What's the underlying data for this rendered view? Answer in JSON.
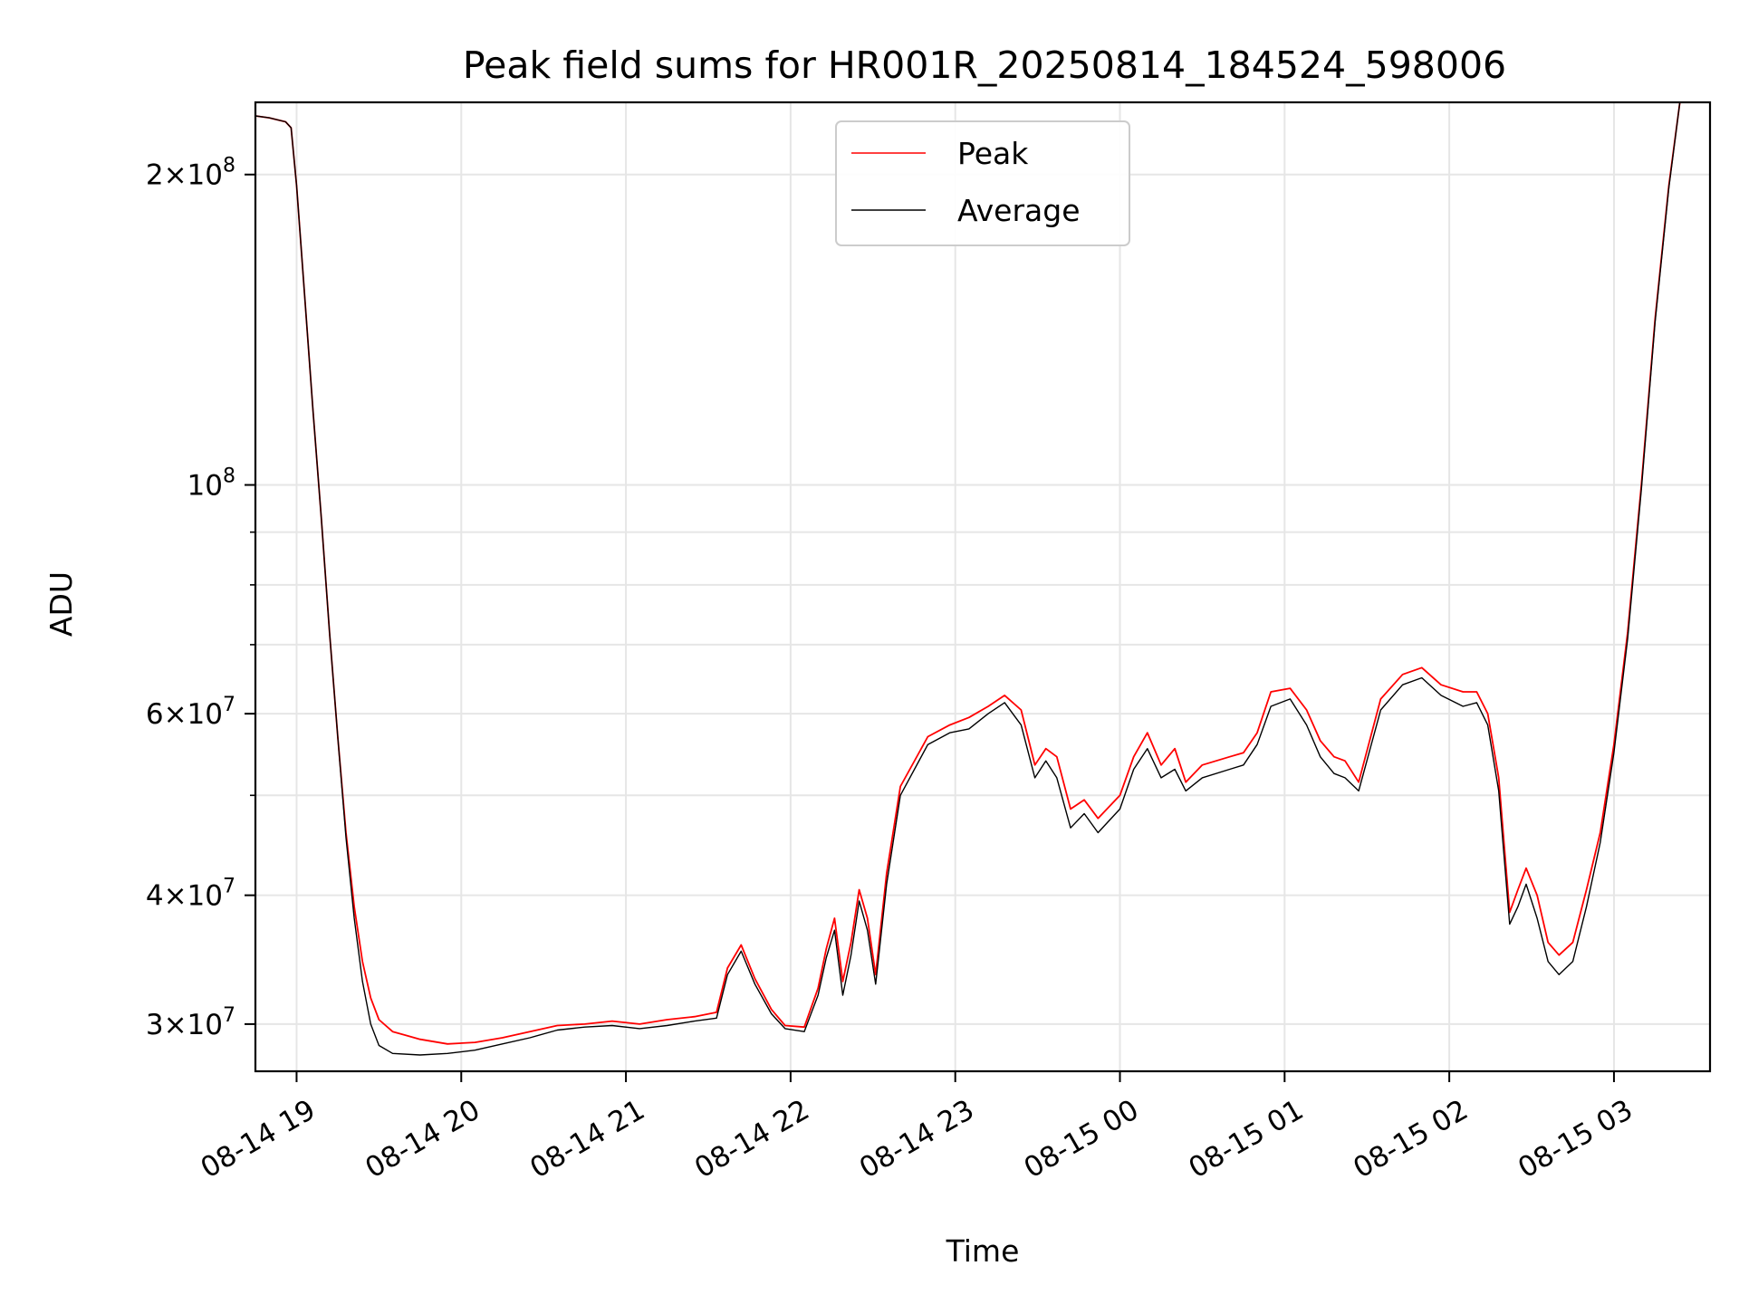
{
  "chart_data": {
    "type": "line",
    "title": "Peak field sums for HR001R_20250814_184524_598006",
    "xlabel": "Time",
    "ylabel": "ADU",
    "x_type": "time",
    "xlim": [
      "2025-08-14 18:45",
      "2025-08-15 03:35"
    ],
    "ylim": [
      27000000,
      235000000
    ],
    "yscale": "log",
    "grid": true,
    "legend_position": "top-center",
    "x_ticks": [
      "08-14 19",
      "08-14 20",
      "08-14 21",
      "08-14 22",
      "08-14 23",
      "08-15 00",
      "08-15 01",
      "08-15 02",
      "08-15 03"
    ],
    "x_tick_times": [
      "2025-08-14 19:00",
      "2025-08-14 20:00",
      "2025-08-14 21:00",
      "2025-08-14 22:00",
      "2025-08-14 23:00",
      "2025-08-15 00:00",
      "2025-08-15 01:00",
      "2025-08-15 02:00",
      "2025-08-15 03:00"
    ],
    "y_major_ticks": [
      {
        "value": 30000000,
        "mantissa": "3",
        "exp": "7"
      },
      {
        "value": 40000000,
        "mantissa": "4",
        "exp": "7"
      },
      {
        "value": 60000000,
        "mantissa": "6",
        "exp": "7"
      },
      {
        "value": 100000000,
        "mantissa": "",
        "exp": "8"
      },
      {
        "value": 200000000,
        "mantissa": "2",
        "exp": "8"
      }
    ],
    "y_minor_gridlines": [
      50000000,
      70000000,
      80000000,
      90000000
    ],
    "series": [
      {
        "name": "Peak",
        "color": "#ff0000",
        "x": [
          "2025-08-14 18:45",
          "2025-08-14 18:50",
          "2025-08-14 18:56",
          "2025-08-14 18:58",
          "2025-08-14 19:00",
          "2025-08-14 19:03",
          "2025-08-14 19:06",
          "2025-08-14 19:09",
          "2025-08-14 19:12",
          "2025-08-14 19:15",
          "2025-08-14 19:18",
          "2025-08-14 19:21",
          "2025-08-14 19:24",
          "2025-08-14 19:27",
          "2025-08-14 19:30",
          "2025-08-14 19:35",
          "2025-08-14 19:45",
          "2025-08-14 19:55",
          "2025-08-14 20:05",
          "2025-08-14 20:15",
          "2025-08-14 20:25",
          "2025-08-14 20:35",
          "2025-08-14 20:45",
          "2025-08-14 20:55",
          "2025-08-14 21:05",
          "2025-08-14 21:15",
          "2025-08-14 21:25",
          "2025-08-14 21:33",
          "2025-08-14 21:37",
          "2025-08-14 21:42",
          "2025-08-14 21:47",
          "2025-08-14 21:53",
          "2025-08-14 21:58",
          "2025-08-14 22:05",
          "2025-08-14 22:10",
          "2025-08-14 22:13",
          "2025-08-14 22:16",
          "2025-08-14 22:19",
          "2025-08-14 22:22",
          "2025-08-14 22:25",
          "2025-08-14 22:28",
          "2025-08-14 22:31",
          "2025-08-14 22:35",
          "2025-08-14 22:40",
          "2025-08-14 22:50",
          "2025-08-14 22:58",
          "2025-08-14 23:05",
          "2025-08-14 23:12",
          "2025-08-14 23:18",
          "2025-08-14 23:24",
          "2025-08-14 23:29",
          "2025-08-14 23:33",
          "2025-08-14 23:37",
          "2025-08-14 23:42",
          "2025-08-14 23:47",
          "2025-08-14 23:52",
          "2025-08-15 00:00",
          "2025-08-15 00:05",
          "2025-08-15 00:10",
          "2025-08-15 00:15",
          "2025-08-15 00:20",
          "2025-08-15 00:24",
          "2025-08-15 00:30",
          "2025-08-15 00:40",
          "2025-08-15 00:45",
          "2025-08-15 00:50",
          "2025-08-15 00:55",
          "2025-08-15 01:02",
          "2025-08-15 01:08",
          "2025-08-15 01:13",
          "2025-08-15 01:18",
          "2025-08-15 01:22",
          "2025-08-15 01:27",
          "2025-08-15 01:35",
          "2025-08-15 01:43",
          "2025-08-15 01:50",
          "2025-08-15 01:57",
          "2025-08-15 02:05",
          "2025-08-15 02:10",
          "2025-08-15 02:14",
          "2025-08-15 02:18",
          "2025-08-15 02:22",
          "2025-08-15 02:25",
          "2025-08-15 02:28",
          "2025-08-15 02:32",
          "2025-08-15 02:36",
          "2025-08-15 02:40",
          "2025-08-15 02:45",
          "2025-08-15 02:50",
          "2025-08-15 02:55",
          "2025-08-15 03:00",
          "2025-08-15 03:05",
          "2025-08-15 03:10",
          "2025-08-15 03:15",
          "2025-08-15 03:20",
          "2025-08-15 03:24",
          "2025-08-15 03:35"
        ],
        "y": [
          228000000,
          227000000,
          225000000,
          222000000,
          195000000,
          152000000,
          118000000,
          93000000,
          72000000,
          57000000,
          46000000,
          39000000,
          34500000,
          31800000,
          30300000,
          29500000,
          29000000,
          28700000,
          28800000,
          29100000,
          29500000,
          29900000,
          30000000,
          30200000,
          30000000,
          30300000,
          30500000,
          30800000,
          34000000,
          35800000,
          33200000,
          31000000,
          29900000,
          29800000,
          32500000,
          35500000,
          38000000,
          33000000,
          36000000,
          40500000,
          38000000,
          33500000,
          42000000,
          51000000,
          57000000,
          58500000,
          59500000,
          61000000,
          62500000,
          60500000,
          53500000,
          55500000,
          54500000,
          48500000,
          49500000,
          47500000,
          50000000,
          54500000,
          57500000,
          53500000,
          55500000,
          51500000,
          53500000,
          54500000,
          55000000,
          57500000,
          63000000,
          63500000,
          60500000,
          56500000,
          54500000,
          54000000,
          51500000,
          62000000,
          65500000,
          66500000,
          64000000,
          63000000,
          63000000,
          60000000,
          52000000,
          38500000,
          40500000,
          42500000,
          40000000,
          36000000,
          35000000,
          36000000,
          40500000,
          46000000,
          56000000,
          72000000,
          100000000,
          145000000,
          195000000,
          235000000,
          235000000
        ]
      },
      {
        "name": "Average",
        "color": "#000000",
        "x": [
          "2025-08-14 18:45",
          "2025-08-14 18:50",
          "2025-08-14 18:56",
          "2025-08-14 18:58",
          "2025-08-14 19:00",
          "2025-08-14 19:03",
          "2025-08-14 19:06",
          "2025-08-14 19:09",
          "2025-08-14 19:12",
          "2025-08-14 19:15",
          "2025-08-14 19:18",
          "2025-08-14 19:21",
          "2025-08-14 19:24",
          "2025-08-14 19:27",
          "2025-08-14 19:30",
          "2025-08-14 19:35",
          "2025-08-14 19:45",
          "2025-08-14 19:55",
          "2025-08-14 20:05",
          "2025-08-14 20:15",
          "2025-08-14 20:25",
          "2025-08-14 20:35",
          "2025-08-14 20:45",
          "2025-08-14 20:55",
          "2025-08-14 21:05",
          "2025-08-14 21:15",
          "2025-08-14 21:25",
          "2025-08-14 21:33",
          "2025-08-14 21:37",
          "2025-08-14 21:42",
          "2025-08-14 21:47",
          "2025-08-14 21:53",
          "2025-08-14 21:58",
          "2025-08-14 22:05",
          "2025-08-14 22:10",
          "2025-08-14 22:13",
          "2025-08-14 22:16",
          "2025-08-14 22:19",
          "2025-08-14 22:22",
          "2025-08-14 22:25",
          "2025-08-14 22:28",
          "2025-08-14 22:31",
          "2025-08-14 22:35",
          "2025-08-14 22:40",
          "2025-08-14 22:50",
          "2025-08-14 22:58",
          "2025-08-14 23:05",
          "2025-08-14 23:12",
          "2025-08-14 23:18",
          "2025-08-14 23:24",
          "2025-08-14 23:29",
          "2025-08-14 23:33",
          "2025-08-14 23:37",
          "2025-08-14 23:42",
          "2025-08-14 23:47",
          "2025-08-14 23:52",
          "2025-08-15 00:00",
          "2025-08-15 00:05",
          "2025-08-15 00:10",
          "2025-08-15 00:15",
          "2025-08-15 00:20",
          "2025-08-15 00:24",
          "2025-08-15 00:30",
          "2025-08-15 00:40",
          "2025-08-15 00:45",
          "2025-08-15 00:50",
          "2025-08-15 00:55",
          "2025-08-15 01:02",
          "2025-08-15 01:08",
          "2025-08-15 01:13",
          "2025-08-15 01:18",
          "2025-08-15 01:22",
          "2025-08-15 01:27",
          "2025-08-15 01:35",
          "2025-08-15 01:43",
          "2025-08-15 01:50",
          "2025-08-15 01:57",
          "2025-08-15 02:05",
          "2025-08-15 02:10",
          "2025-08-15 02:14",
          "2025-08-15 02:18",
          "2025-08-15 02:22",
          "2025-08-15 02:25",
          "2025-08-15 02:28",
          "2025-08-15 02:32",
          "2025-08-15 02:36",
          "2025-08-15 02:40",
          "2025-08-15 02:45",
          "2025-08-15 02:50",
          "2025-08-15 02:55",
          "2025-08-15 03:00",
          "2025-08-15 03:05",
          "2025-08-15 03:10",
          "2025-08-15 03:15",
          "2025-08-15 03:20",
          "2025-08-15 03:24",
          "2025-08-15 03:35"
        ],
        "y": [
          228000000,
          227000000,
          225000000,
          222000000,
          195000000,
          152000000,
          118000000,
          93000000,
          72000000,
          57000000,
          45500000,
          38000000,
          33000000,
          30000000,
          28600000,
          28100000,
          28000000,
          28100000,
          28300000,
          28700000,
          29100000,
          29600000,
          29800000,
          29900000,
          29700000,
          29900000,
          30200000,
          30400000,
          33500000,
          35300000,
          32800000,
          30700000,
          29700000,
          29500000,
          32000000,
          34800000,
          37000000,
          32000000,
          35000000,
          39500000,
          37000000,
          32800000,
          41000000,
          50000000,
          56000000,
          57500000,
          58000000,
          60000000,
          61500000,
          58500000,
          52000000,
          54000000,
          52000000,
          46500000,
          48000000,
          46000000,
          48500000,
          53000000,
          55500000,
          52000000,
          53000000,
          50500000,
          52000000,
          53000000,
          53500000,
          56000000,
          61000000,
          62000000,
          58500000,
          54500000,
          52500000,
          52000000,
          50500000,
          60500000,
          64000000,
          65000000,
          62500000,
          61000000,
          61500000,
          58500000,
          50500000,
          37500000,
          39000000,
          41000000,
          38000000,
          34500000,
          33500000,
          34500000,
          39000000,
          45000000,
          55000000,
          71000000,
          99000000,
          144000000,
          194000000,
          235000000,
          235000000
        ]
      }
    ]
  }
}
